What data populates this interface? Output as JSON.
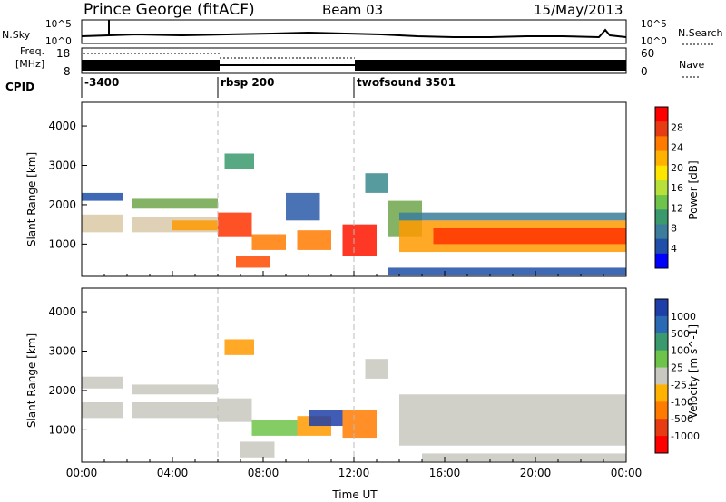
{
  "header": {
    "title": "Prince George (fitACF)",
    "beam": "Beam 03",
    "date": "15/May/2013"
  },
  "top_strips": {
    "nsky_label": "N.Sky",
    "nsky_ticks": [
      "10^5",
      "10^0"
    ],
    "nsearch_label": "N.Search",
    "nsearch_ticks": [
      "10^5",
      "10^0"
    ],
    "freq_label": "Freq.",
    "freq_unit": "[MHz]",
    "freq_ticks": [
      "18",
      "8"
    ],
    "nave_label": "Nave",
    "nave_ticks": [
      "60",
      "0"
    ],
    "cpid_label": "CPID",
    "cpid_segments": [
      {
        "label": "-3400",
        "start_hour": 0
      },
      {
        "label": "rbsp 200",
        "start_hour": 6
      },
      {
        "label": "twofsound 3501",
        "start_hour": 12
      }
    ]
  },
  "chart_data": [
    {
      "type": "heatmap",
      "panel": "power",
      "ylabel": "Slant Range [km]",
      "yticks": [
        1000,
        2000,
        3000,
        4000
      ],
      "ylim": [
        180,
        4600
      ],
      "xlim": [
        0,
        24
      ],
      "colorbar": {
        "label": "Power [dB]",
        "ticks": [
          "28",
          "24",
          "20",
          "16",
          "12",
          "8",
          "4"
        ],
        "colors": [
          "#ff0000",
          "#e63b13",
          "#ff7b00",
          "#ffb300",
          "#ffe600",
          "#b8e03a",
          "#6ec44a",
          "#3a9a6e",
          "#3b7d9b",
          "#1f4fa8",
          "#0000ff"
        ]
      },
      "bands": [
        {
          "x0": 0.0,
          "x1": 1.8,
          "y0": 2100,
          "y1": 2300,
          "color": "#1f4fa8"
        },
        {
          "x0": 0.0,
          "x1": 1.8,
          "y0": 1300,
          "y1": 1750,
          "color": "#dcc9a6"
        },
        {
          "x0": 2.2,
          "x1": 6.0,
          "y0": 1900,
          "y1": 2150,
          "color": "#6ea64a"
        },
        {
          "x0": 2.2,
          "x1": 6.0,
          "y0": 1300,
          "y1": 1700,
          "color": "#d9c9a8"
        },
        {
          "x0": 4.0,
          "x1": 6.0,
          "y0": 1350,
          "y1": 1600,
          "color": "#ff9a00"
        },
        {
          "x0": 6.0,
          "x1": 7.5,
          "y0": 1200,
          "y1": 1800,
          "color": "#ff3300"
        },
        {
          "x0": 6.3,
          "x1": 7.6,
          "y0": 2900,
          "y1": 3300,
          "color": "#3a9a6e"
        },
        {
          "x0": 6.8,
          "x1": 8.3,
          "y0": 400,
          "y1": 700,
          "color": "#ff4a00"
        },
        {
          "x0": 7.5,
          "x1": 9.0,
          "y0": 850,
          "y1": 1250,
          "color": "#ff7b00"
        },
        {
          "x0": 9.0,
          "x1": 10.5,
          "y0": 1600,
          "y1": 2300,
          "color": "#2a5aa8"
        },
        {
          "x0": 9.5,
          "x1": 11.0,
          "y0": 850,
          "y1": 1350,
          "color": "#ff7b00"
        },
        {
          "x0": 11.5,
          "x1": 13.0,
          "y0": 700,
          "y1": 1500,
          "color": "#ff1500"
        },
        {
          "x0": 12.5,
          "x1": 13.5,
          "y0": 2300,
          "y1": 2800,
          "color": "#3a8a8e"
        },
        {
          "x0": 13.5,
          "x1": 15.0,
          "y0": 1200,
          "y1": 2100,
          "color": "#6ea64a"
        },
        {
          "x0": 14.0,
          "x1": 24.0,
          "y0": 800,
          "y1": 1600,
          "color": "#ff9a00"
        },
        {
          "x0": 15.5,
          "x1": 24.0,
          "y0": 1000,
          "y1": 1400,
          "color": "#ff3300"
        },
        {
          "x0": 14.0,
          "x1": 24.0,
          "y0": 1600,
          "y1": 1800,
          "color": "#3b7d9b"
        },
        {
          "x0": 13.5,
          "x1": 24.0,
          "y0": 200,
          "y1": 400,
          "color": "#1f4fa8"
        }
      ]
    },
    {
      "type": "heatmap",
      "panel": "velocity",
      "ylabel": "Slant Range [km]",
      "yticks": [
        1000,
        2000,
        3000,
        4000
      ],
      "ylim": [
        180,
        4600
      ],
      "xlim": [
        0,
        24
      ],
      "xlabel": "Time UT",
      "xticks": [
        "00:00",
        "04:00",
        "08:00",
        "12:00",
        "16:00",
        "20:00",
        "00:00"
      ],
      "colorbar": {
        "label": "Velocity [m s^-1]",
        "ticks": [
          "1000",
          "500",
          "100",
          "25",
          "-25",
          "-100",
          "-500",
          "-1000"
        ],
        "colors": [
          "#1f3fa8",
          "#2a6ab5",
          "#3a9a6e",
          "#6ec44a",
          "#c8c8c0",
          "#ffb300",
          "#ff7b00",
          "#e63b13",
          "#ff0000"
        ]
      },
      "bands": [
        {
          "x0": 0.0,
          "x1": 1.8,
          "y0": 2050,
          "y1": 2350,
          "color": "#c8c8c0"
        },
        {
          "x0": 0.0,
          "x1": 1.8,
          "y0": 1300,
          "y1": 1700,
          "color": "#c8c8c0"
        },
        {
          "x0": 2.2,
          "x1": 6.0,
          "y0": 1900,
          "y1": 2150,
          "color": "#c8c8c0"
        },
        {
          "x0": 2.2,
          "x1": 6.0,
          "y0": 1300,
          "y1": 1700,
          "color": "#c8c8c0"
        },
        {
          "x0": 6.0,
          "x1": 7.5,
          "y0": 1200,
          "y1": 1800,
          "color": "#c8c8c0"
        },
        {
          "x0": 6.3,
          "x1": 7.6,
          "y0": 2900,
          "y1": 3300,
          "color": "#ff9a00"
        },
        {
          "x0": 7.0,
          "x1": 8.5,
          "y0": 300,
          "y1": 700,
          "color": "#c8c8c0"
        },
        {
          "x0": 7.5,
          "x1": 9.5,
          "y0": 850,
          "y1": 1250,
          "color": "#6ec44a"
        },
        {
          "x0": 9.5,
          "x1": 11.0,
          "y0": 850,
          "y1": 1350,
          "color": "#ff9a00"
        },
        {
          "x0": 10.0,
          "x1": 11.5,
          "y0": 1100,
          "y1": 1500,
          "color": "#1f3fa8"
        },
        {
          "x0": 11.5,
          "x1": 13.0,
          "y0": 800,
          "y1": 1500,
          "color": "#ff7b00"
        },
        {
          "x0": 12.5,
          "x1": 13.5,
          "y0": 2300,
          "y1": 2800,
          "color": "#c8c8c0"
        },
        {
          "x0": 14.0,
          "x1": 24.0,
          "y0": 600,
          "y1": 1900,
          "color": "#c8c8c0"
        },
        {
          "x0": 15.0,
          "x1": 24.0,
          "y0": 200,
          "y1": 400,
          "color": "#c8c8c0"
        }
      ]
    }
  ]
}
